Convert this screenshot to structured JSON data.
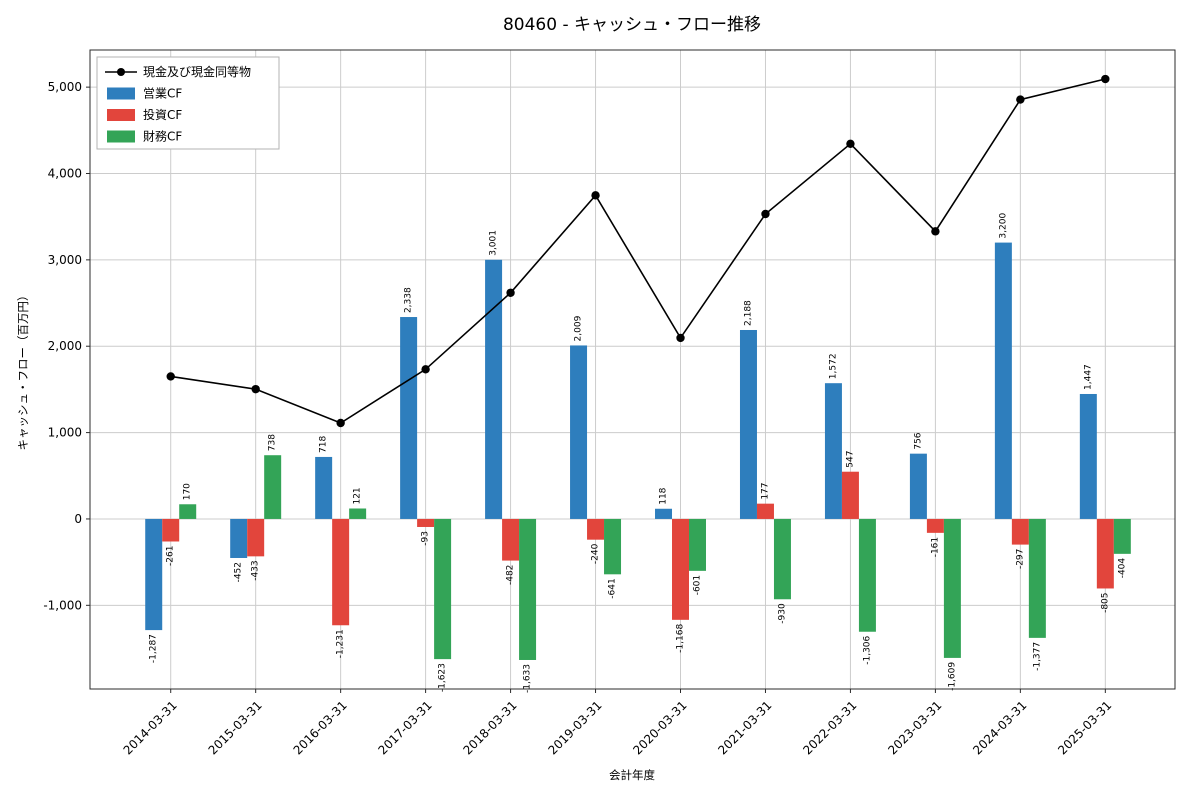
{
  "figure_title": "80460 - キャッシュ・フロー推移",
  "chart_data": {
    "type": "bar+line",
    "title": "80460 - キャッシュ・フロー推移",
    "xlabel": "会計年度",
    "ylabel": "キャッシュ・フロー（百万円）",
    "categories": [
      "2014-03-31",
      "2015-03-31",
      "2016-03-31",
      "2017-03-31",
      "2018-03-31",
      "2019-03-31",
      "2020-03-31",
      "2021-03-31",
      "2022-03-31",
      "2023-03-31",
      "2024-03-31",
      "2025-03-31"
    ],
    "series": [
      {
        "name": "現金及び現金同等物",
        "type": "line",
        "color": "#000000",
        "values": [
          1650,
          1503,
          1111,
          1733,
          2619,
          3747,
          2096,
          3531,
          4344,
          3330,
          4856,
          5094
        ]
      },
      {
        "name": "営業CF",
        "type": "bar",
        "color": "#2e7ebd",
        "values": [
          -1287,
          -452,
          718,
          2338,
          3001,
          2009,
          118,
          2188,
          1572,
          756,
          3200,
          1447
        ]
      },
      {
        "name": "投資CF",
        "type": "bar",
        "color": "#e2453c",
        "values": [
          -261,
          -433,
          -1231,
          -93,
          -482,
          -240,
          -1168,
          177,
          547,
          -161,
          -297,
          -805
        ]
      },
      {
        "name": "財務CF",
        "type": "bar",
        "color": "#33a457",
        "values": [
          170,
          738,
          121,
          -1623,
          -1633,
          -641,
          -601,
          -930,
          -1306,
          -1609,
          -1377,
          -404
        ]
      }
    ],
    "yticks": [
      -1000,
      0,
      1000,
      2000,
      3000,
      4000,
      5000
    ],
    "ylim": [
      -1969,
      5430
    ],
    "grid": true,
    "legend_position": "upper-left",
    "bar_value_labels": true,
    "colors": {
      "operating_cf": "#2e7ebd",
      "investing_cf": "#e2453c",
      "financing_cf": "#33a457",
      "cash_line": "#000000",
      "grid": "#cccccc",
      "axis": "#2b2b2b"
    }
  }
}
